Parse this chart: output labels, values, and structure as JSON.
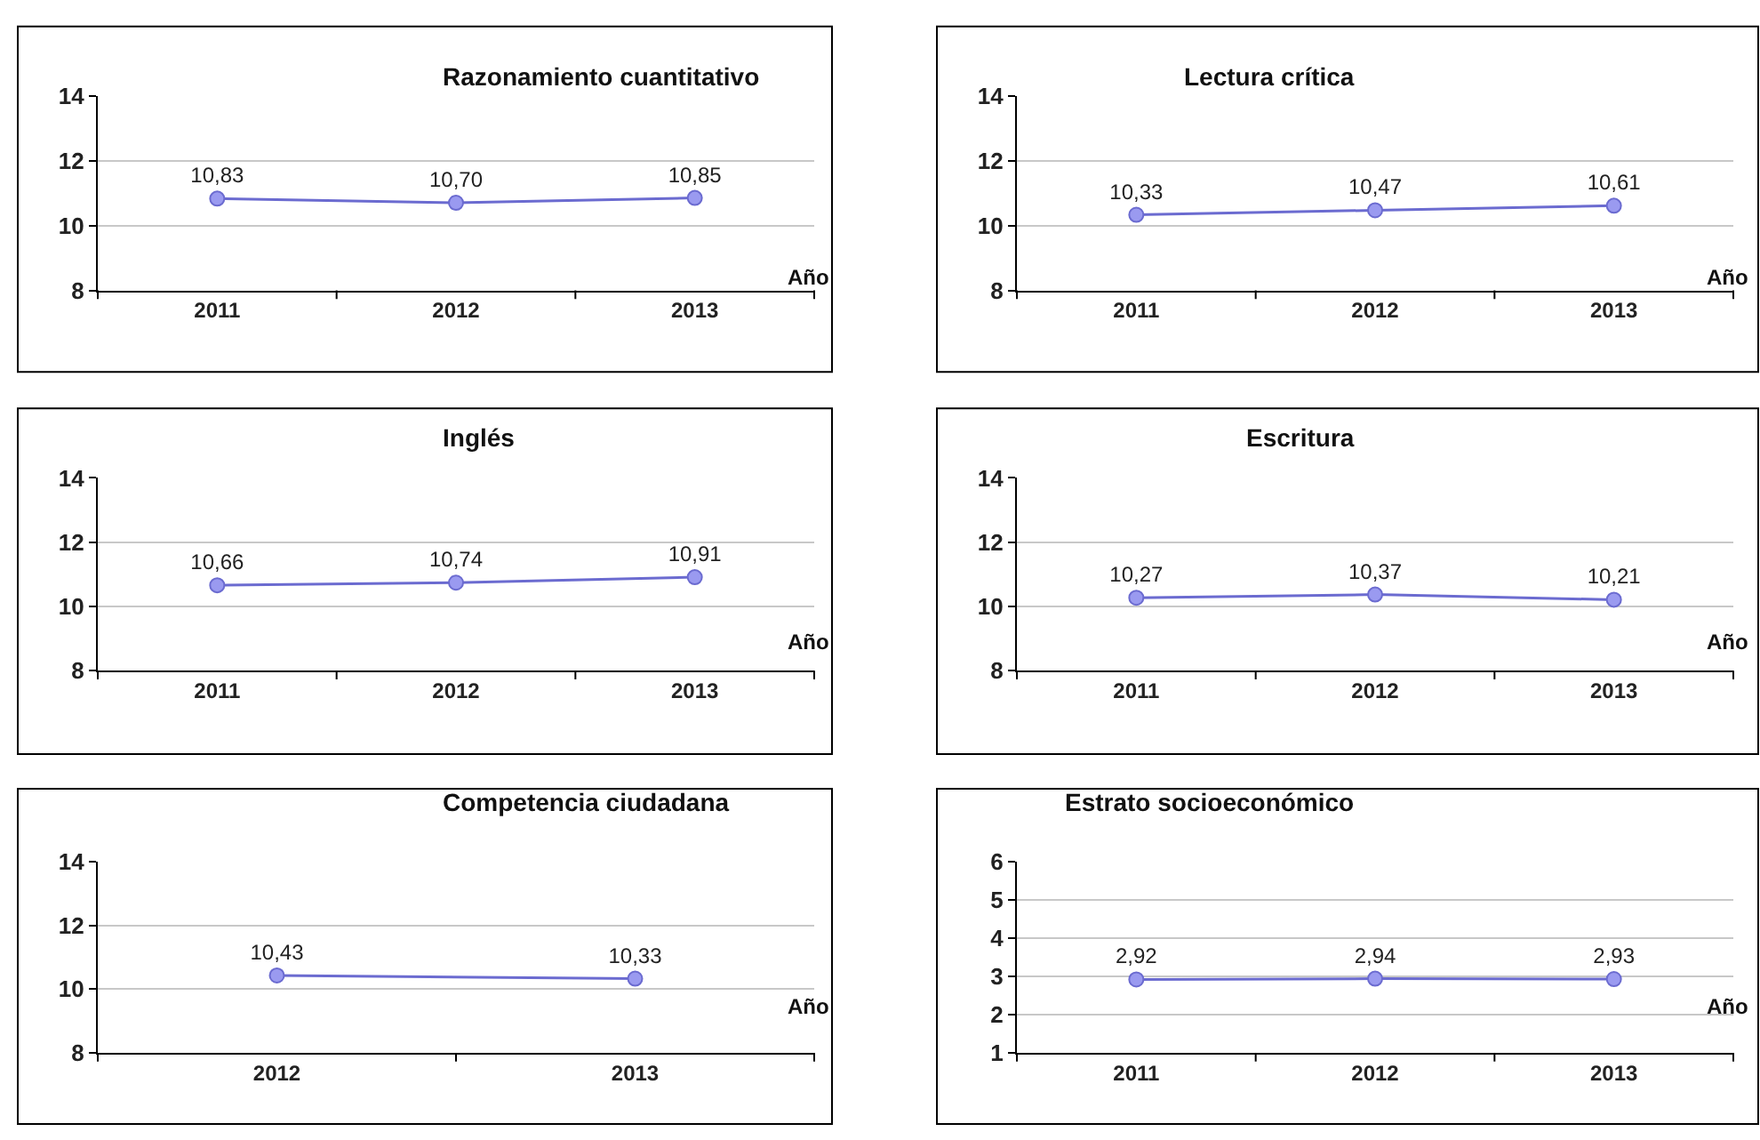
{
  "chart_data": [
    {
      "type": "line",
      "title": "Razonamiento cuantitativo",
      "xlabel": "Año",
      "categories": [
        "2011",
        "2012",
        "2013"
      ],
      "series": [
        {
          "color": "#6b6bd0",
          "values": [
            10.83,
            10.7,
            10.85
          ],
          "value_labels": [
            "10,83",
            "10,70",
            "10,85"
          ]
        }
      ],
      "ylim": [
        8,
        14
      ],
      "yticks": [
        8,
        10,
        12,
        14
      ],
      "grid": "y",
      "marker": "circle",
      "line_style": "solid"
    },
    {
      "type": "line",
      "title": "Lectura crítica",
      "xlabel": "Año",
      "categories": [
        "2011",
        "2012",
        "2013"
      ],
      "series": [
        {
          "color": "#6b6bd0",
          "values": [
            10.33,
            10.47,
            10.61
          ],
          "value_labels": [
            "10,33",
            "10,47",
            "10,61"
          ]
        }
      ],
      "ylim": [
        8,
        14
      ],
      "yticks": [
        8,
        10,
        12,
        14
      ],
      "grid": "y",
      "marker": "circle",
      "line_style": "solid"
    },
    {
      "type": "line",
      "title": "Inglés",
      "xlabel": "Año",
      "categories": [
        "2011",
        "2012",
        "2013"
      ],
      "series": [
        {
          "color": "#6b6bd0",
          "values": [
            10.66,
            10.74,
            10.91
          ],
          "value_labels": [
            "10,66",
            "10,74",
            "10,91"
          ]
        }
      ],
      "ylim": [
        8,
        14
      ],
      "yticks": [
        8,
        10,
        12,
        14
      ],
      "grid": "y",
      "marker": "circle",
      "line_style": "solid"
    },
    {
      "type": "line",
      "title": "Escritura",
      "xlabel": "Año",
      "categories": [
        "2011",
        "2012",
        "2013"
      ],
      "series": [
        {
          "color": "#6b6bd0",
          "values": [
            10.27,
            10.37,
            10.21
          ],
          "value_labels": [
            "10,27",
            "10,37",
            "10,21"
          ]
        }
      ],
      "ylim": [
        8,
        14
      ],
      "yticks": [
        8,
        10,
        12,
        14
      ],
      "grid": "y",
      "marker": "circle",
      "line_style": "solid"
    },
    {
      "type": "line",
      "title": "Competencia ciudadana",
      "xlabel": "Año",
      "categories": [
        "2012",
        "2013"
      ],
      "series": [
        {
          "color": "#6b6bd0",
          "values": [
            10.43,
            10.33
          ],
          "value_labels": [
            "10,43",
            "10,33"
          ]
        }
      ],
      "ylim": [
        8,
        14
      ],
      "yticks": [
        8,
        10,
        12,
        14
      ],
      "grid": "y",
      "marker": "circle",
      "line_style": "solid"
    },
    {
      "type": "line",
      "title": "Estrato socioeconómico",
      "xlabel": "Año",
      "categories": [
        "2011",
        "2012",
        "2013"
      ],
      "series": [
        {
          "color": "#6b6bd0",
          "values": [
            2.92,
            2.94,
            2.93
          ],
          "value_labels": [
            "2,92",
            "2,94",
            "2,93"
          ]
        }
      ],
      "ylim": [
        1,
        6
      ],
      "yticks": [
        1,
        2,
        3,
        4,
        5,
        6
      ],
      "grid": "y",
      "marker": "circle",
      "line_style": "solid"
    }
  ]
}
